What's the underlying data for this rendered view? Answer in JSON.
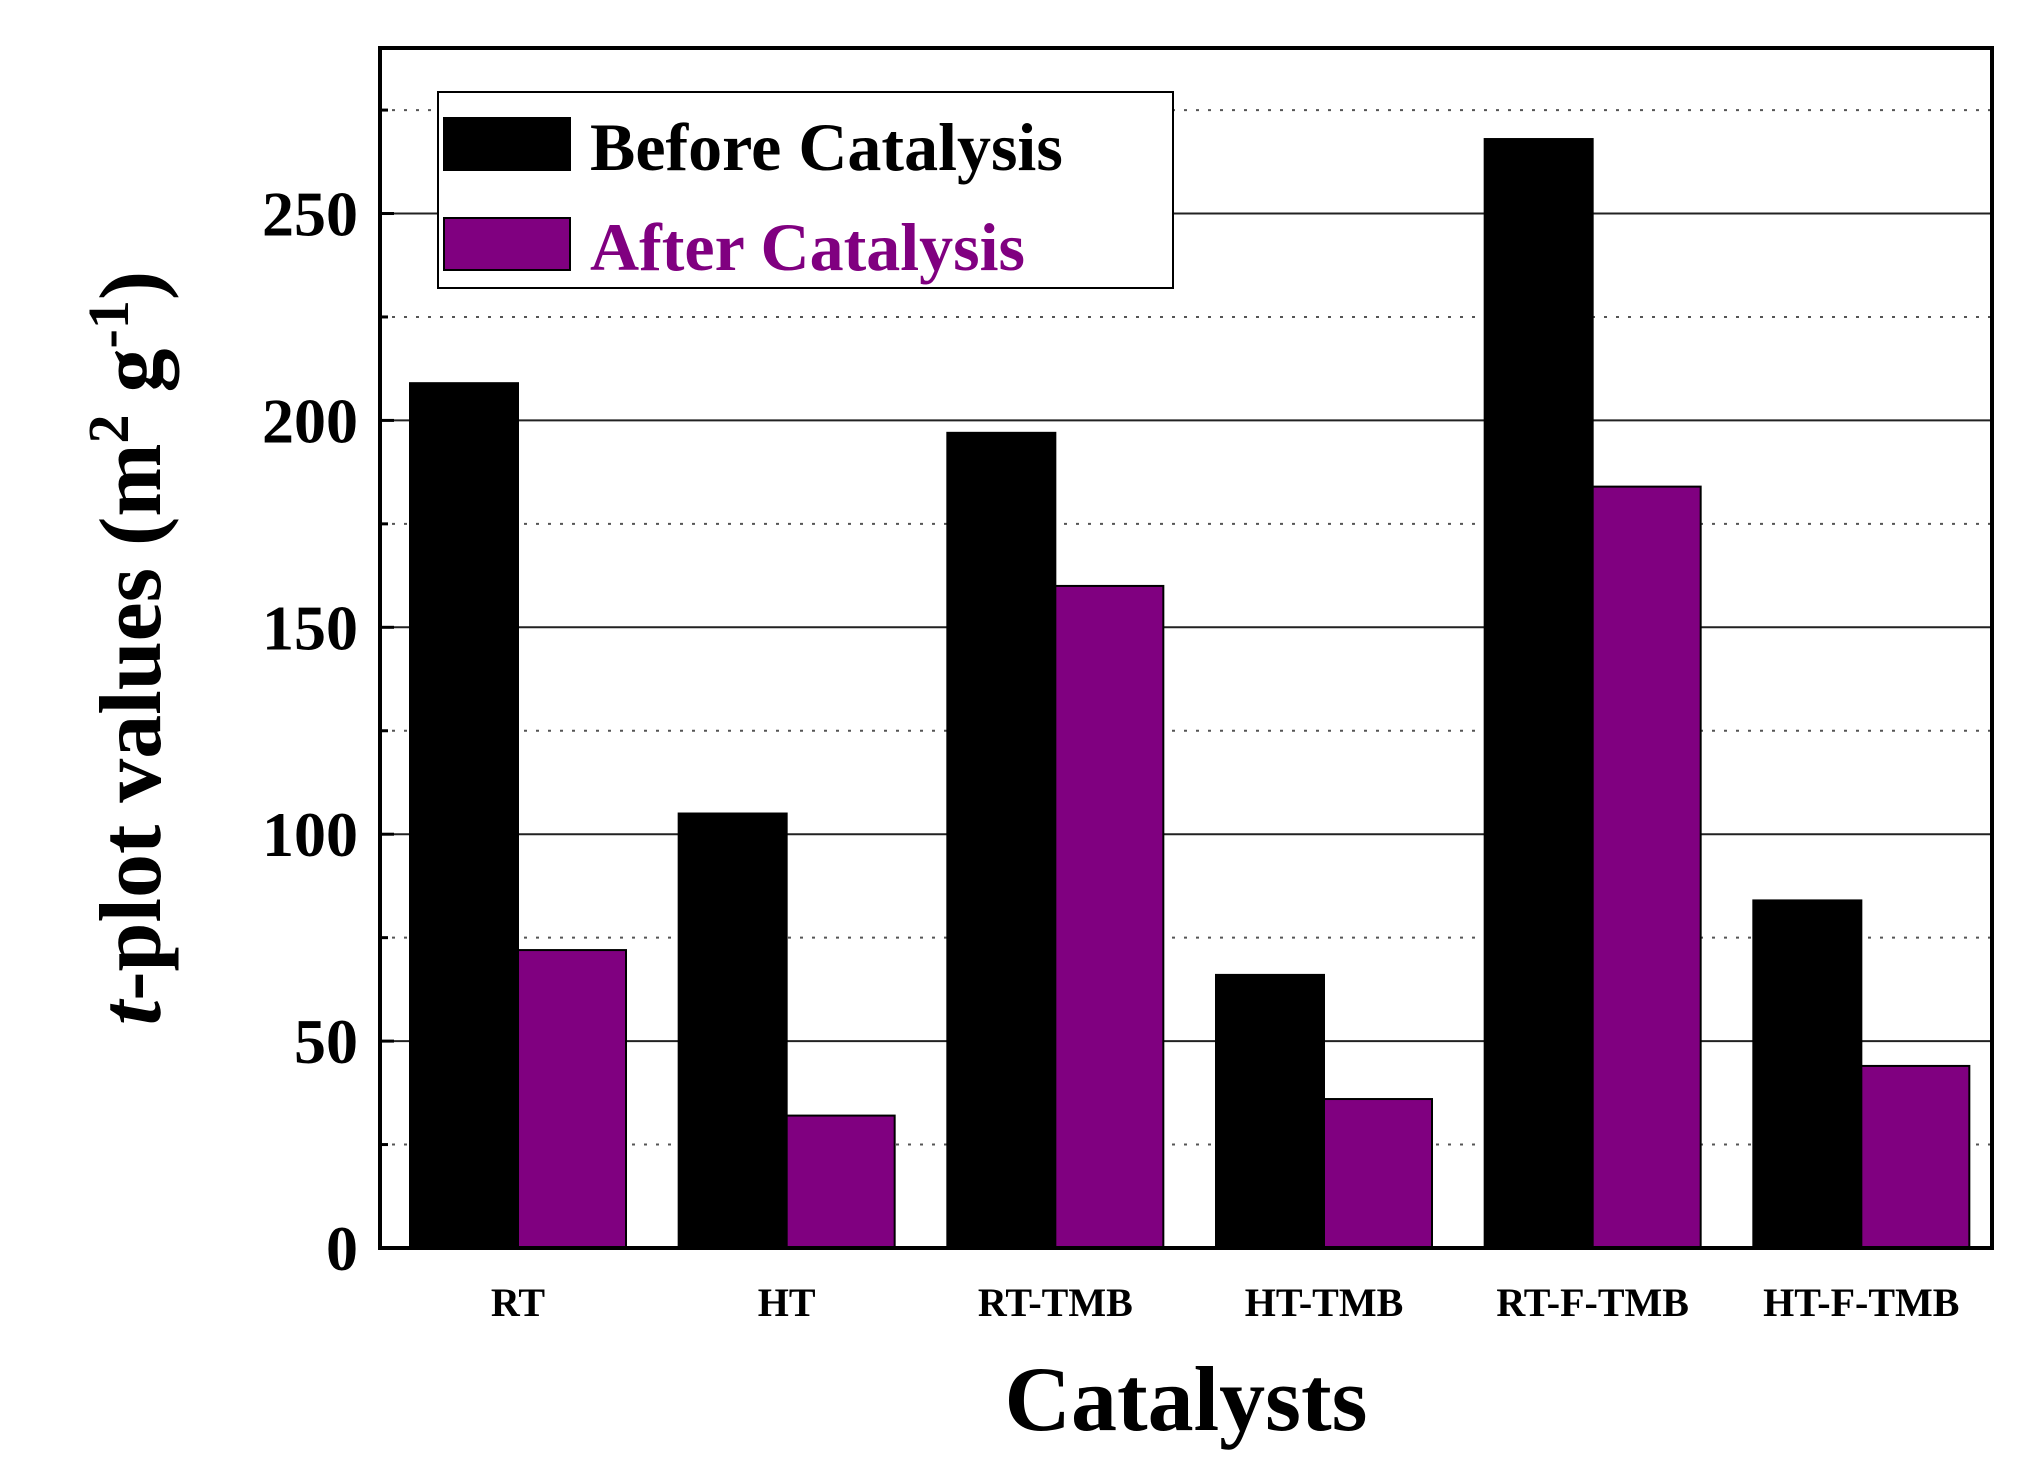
{
  "chart_data": {
    "type": "bar",
    "title": "",
    "xlabel": "Catalysts",
    "ylabel": {
      "italic_prefix": "t",
      "text": "-plot values (m",
      "sup1": "2",
      "mid": " g",
      "sup2": "-1",
      "end": ")"
    },
    "categories": [
      "RT",
      "HT",
      "RT-TMB",
      "HT-TMB",
      "RT-F-TMB",
      "HT-F-TMB"
    ],
    "series": [
      {
        "name": "Before Catalysis",
        "color": "#000000",
        "text_color": "#000000",
        "values": [
          209,
          105,
          197,
          66,
          268,
          84
        ]
      },
      {
        "name": "After Catalysis",
        "color": "#800080",
        "text_color": "#800080",
        "values": [
          72,
          32,
          160,
          36,
          184,
          44
        ]
      }
    ],
    "ylim": [
      0,
      290
    ],
    "yticks": [
      0,
      50,
      100,
      150,
      200,
      250
    ],
    "grid": {
      "major_solid": true,
      "minor_dotted": true
    },
    "legend_position": "top-left"
  }
}
